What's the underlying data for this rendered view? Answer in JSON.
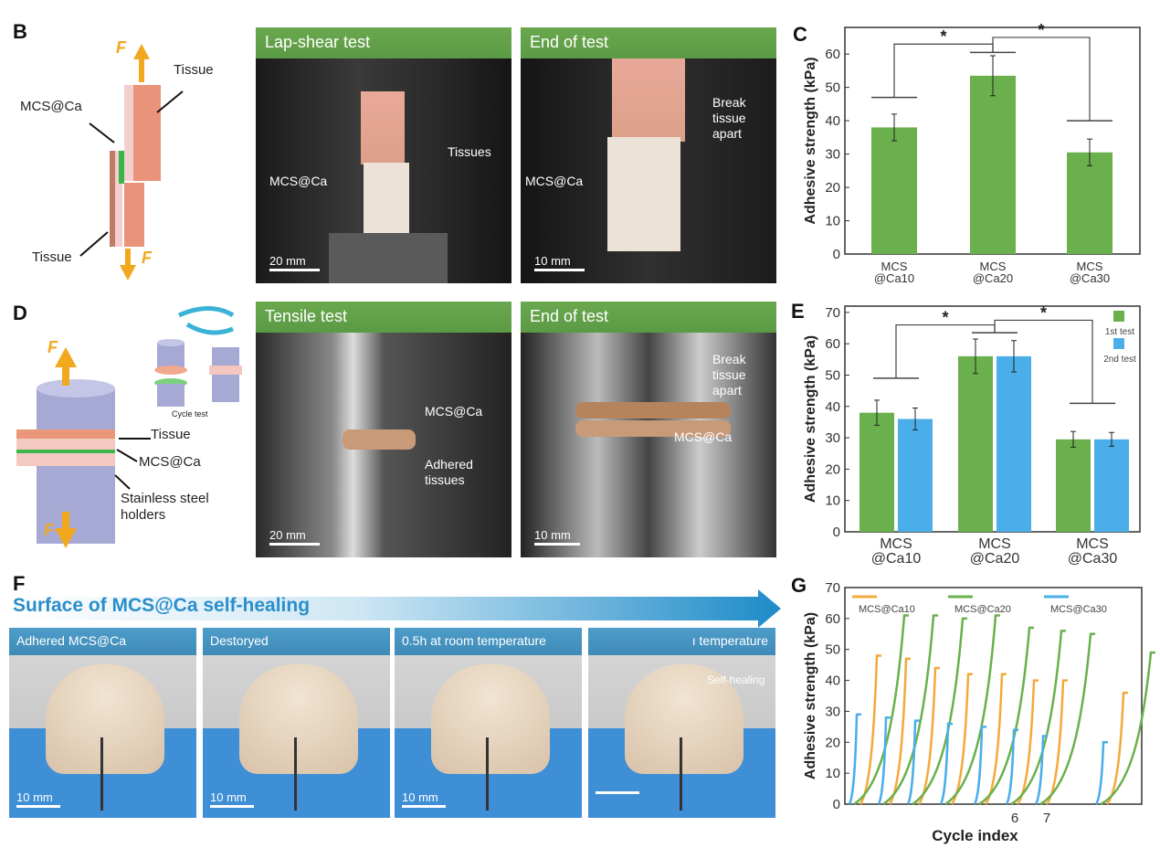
{
  "panels": {
    "B": {
      "label": "B",
      "tissue_top": "Tissue",
      "tissue_bottom": "Tissue",
      "adhesive": "MCS@Ca",
      "force": "F",
      "photo1": {
        "header": "Lap-shear test",
        "label_adhesive": "MCS@Ca",
        "label_tissues": "Tissues",
        "scale": "20 mm"
      },
      "photo2": {
        "header": "End of test",
        "label_adhesive": "MCS@Ca",
        "label_break": "Break tissue apart",
        "scale": "10 mm"
      }
    },
    "C": {
      "label": "C"
    },
    "D": {
      "label": "D",
      "force": "F",
      "tissue": "Tissue",
      "adhesive": "MCS@Ca",
      "holders": "Stainless steel holders",
      "cycle_test": "Cycle test",
      "photo1": {
        "header": "Tensile test",
        "label_adhesive": "MCS@Ca",
        "label_tissues": "Adhered tissues",
        "scale": "20 mm"
      },
      "photo2": {
        "header": "End of test",
        "label_adhesive": "MCS@Ca",
        "label_break": "Break tissue apart",
        "scale": "10 mm"
      }
    },
    "E": {
      "label": "E"
    },
    "F": {
      "label": "F",
      "banner": "Surface of MCS@Ca self-healing",
      "photos": [
        {
          "header": "Adhered MCS@Ca",
          "scale": "10 mm",
          "note": ""
        },
        {
          "header": "Destoryed",
          "scale": "10 mm",
          "note": ""
        },
        {
          "header": "0.5h at room temperature",
          "scale": "10 mm",
          "note": ""
        },
        {
          "header": "ı temperature",
          "scale": "",
          "note": "Self-healing"
        }
      ]
    },
    "G": {
      "label": "G"
    }
  },
  "colors": {
    "green": "#6ab04c",
    "blue": "#4aaee8",
    "orange": "#f3a93c",
    "axis": "#333333"
  },
  "chart_data": [
    {
      "id": "C",
      "type": "bar",
      "ylabel": "Adhesive strength (kPa)",
      "ylim": [
        0,
        68
      ],
      "yticks": [
        0,
        10,
        20,
        30,
        40,
        50,
        60
      ],
      "categories": [
        "MCS\n@Ca10",
        "MCS\n@Ca20",
        "MCS\n@Ca30"
      ],
      "values": [
        38,
        53.5,
        30.5
      ],
      "errors": [
        4,
        6,
        4
      ],
      "significance": [
        {
          "between": [
            0,
            1
          ],
          "mark": "*"
        },
        {
          "between": [
            1,
            2
          ],
          "mark": "*"
        }
      ]
    },
    {
      "id": "E",
      "type": "bar",
      "ylabel": "Adhesive strength (kPa)",
      "ylim": [
        0,
        72
      ],
      "yticks": [
        0,
        10,
        20,
        30,
        40,
        50,
        60,
        70
      ],
      "categories": [
        "MCS\n@Ca10",
        "MCS\n@Ca20",
        "MCS\n@Ca30"
      ],
      "series": [
        {
          "name": "1st test",
          "values": [
            38,
            56,
            29.5
          ],
          "errors": [
            4,
            5.5,
            2.5
          ]
        },
        {
          "name": "2nd test",
          "values": [
            36,
            56,
            29.5
          ],
          "errors": [
            3.5,
            5,
            2.2
          ]
        }
      ],
      "legend": "top-right",
      "significance": [
        {
          "between": [
            0,
            1
          ],
          "mark": "*"
        },
        {
          "between": [
            1,
            2
          ],
          "mark": "*"
        }
      ]
    },
    {
      "id": "G",
      "type": "line",
      "xlabel": "Cycle index",
      "ylabel": "Adhesive strength (kPa)",
      "ylim": [
        0,
        70
      ],
      "yticks": [
        0,
        10,
        20,
        30,
        40,
        50,
        60,
        70
      ],
      "xtick_labels": [
        "6",
        "7"
      ],
      "legend": "top",
      "series": [
        {
          "name": "MCS@Ca10",
          "peak_per_cycle": [
            48,
            47,
            44,
            42,
            42,
            40,
            40,
            36
          ]
        },
        {
          "name": "MCS@Ca20",
          "peak_per_cycle": [
            61,
            61,
            60,
            61,
            57,
            56,
            55,
            49
          ]
        },
        {
          "name": "MCS@Ca30",
          "peak_per_cycle": [
            29,
            28,
            27,
            26,
            25,
            24,
            22,
            20
          ]
        }
      ]
    }
  ]
}
